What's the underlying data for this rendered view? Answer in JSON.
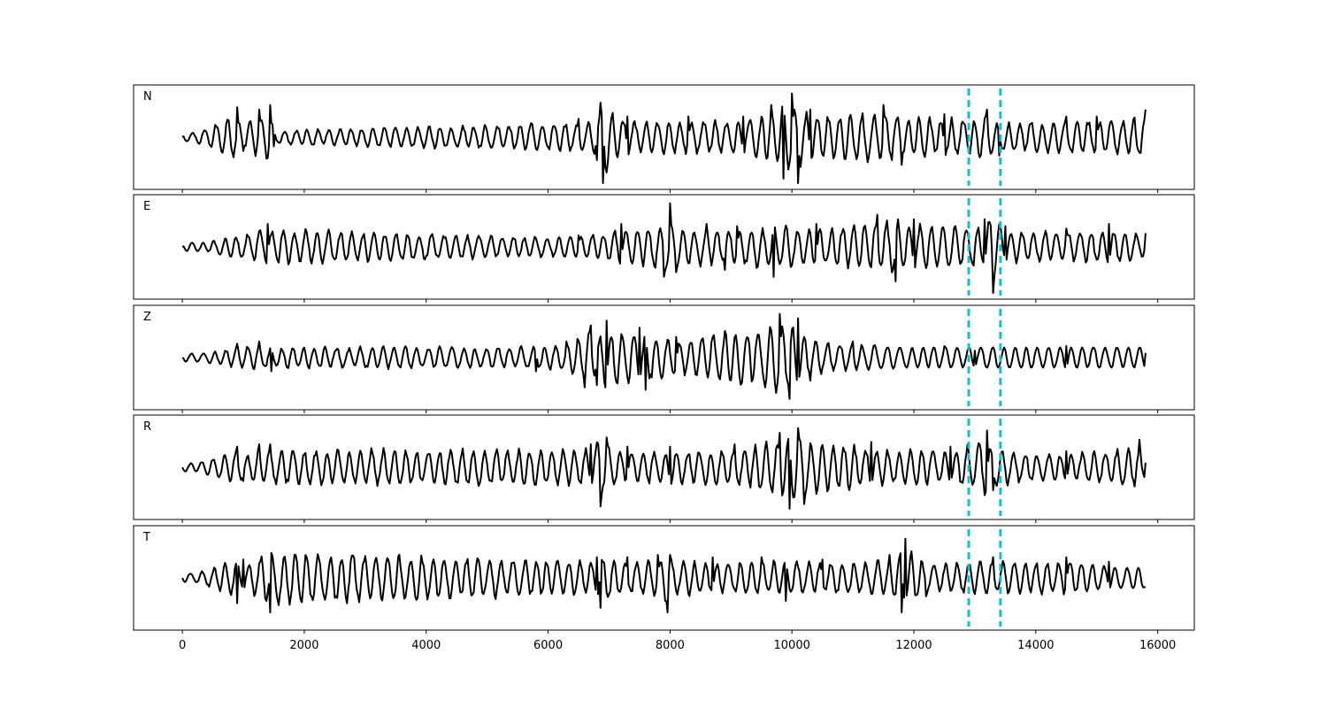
{
  "chart_data": {
    "type": "line",
    "title": "",
    "xlabel": "",
    "ylabel": "",
    "xlim": [
      -800,
      16600
    ],
    "x_ticks": [
      0,
      2000,
      4000,
      6000,
      8000,
      10000,
      12000,
      14000,
      16000
    ],
    "x_tick_labels": [
      "0",
      "2000",
      "4000",
      "6000",
      "8000",
      "10000",
      "12000",
      "14000",
      "16000"
    ],
    "grid": false,
    "legend": "none",
    "colors": {
      "trace": "#000000",
      "marker": "#17becf"
    },
    "markers": [
      {
        "x": 12900,
        "style": "dashed",
        "color": "#17becf"
      },
      {
        "x": 13420,
        "style": "dashed",
        "color": "#17becf"
      }
    ],
    "panels": [
      {
        "label": "N",
        "x_range": [
          0,
          15800
        ],
        "keypoints": [
          [
            0,
            0
          ],
          [
            900,
            0.65
          ],
          [
            1000,
            -0.3
          ],
          [
            1250,
            0.6
          ],
          [
            1440,
            0.7
          ],
          [
            1500,
            -0.2
          ],
          [
            6500,
            0.4
          ],
          [
            6800,
            -0.5
          ],
          [
            6850,
            0.75
          ],
          [
            6900,
            -1.0
          ],
          [
            7300,
            0.45
          ],
          [
            8300,
            0.45
          ],
          [
            9200,
            0.45
          ],
          [
            9650,
            0.7
          ],
          [
            9850,
            -0.9
          ],
          [
            10000,
            0.95
          ],
          [
            10100,
            -1.0
          ],
          [
            10300,
            0.6
          ],
          [
            11500,
            0.7
          ],
          [
            11800,
            -0.6
          ],
          [
            12500,
            0.5
          ],
          [
            13200,
            0.6
          ],
          [
            13400,
            -0.4
          ],
          [
            14500,
            0.45
          ],
          [
            15000,
            0.45
          ],
          [
            15800,
            0.6
          ]
        ]
      },
      {
        "label": "E",
        "x_range": [
          0,
          15800
        ],
        "keypoints": [
          [
            0,
            0
          ],
          [
            1400,
            0.5
          ],
          [
            6500,
            0.25
          ],
          [
            7200,
            0.5
          ],
          [
            7900,
            -0.65
          ],
          [
            8000,
            0.95
          ],
          [
            8100,
            -0.55
          ],
          [
            8600,
            0.5
          ],
          [
            8900,
            -0.5
          ],
          [
            9100,
            0.45
          ],
          [
            9700,
            -0.65
          ],
          [
            10400,
            0.5
          ],
          [
            11400,
            0.7
          ],
          [
            11700,
            -0.75
          ],
          [
            12000,
            0.6
          ],
          [
            13150,
            0.6
          ],
          [
            13300,
            -1.0
          ],
          [
            13500,
            0.45
          ],
          [
            14500,
            0.4
          ],
          [
            15200,
            0.5
          ],
          [
            15800,
            0.3
          ]
        ]
      },
      {
        "label": "Z",
        "x_range": [
          0,
          15800
        ],
        "keypoints": [
          [
            0,
            0
          ],
          [
            900,
            0.3
          ],
          [
            1250,
            0.35
          ],
          [
            1450,
            -0.3
          ],
          [
            5800,
            -0.3
          ],
          [
            6300,
            0.35
          ],
          [
            6600,
            -0.65
          ],
          [
            6700,
            0.7
          ],
          [
            6800,
            -0.6
          ],
          [
            6950,
            0.8
          ],
          [
            7500,
            0.65
          ],
          [
            7600,
            -0.7
          ],
          [
            8100,
            0.45
          ],
          [
            9800,
            0.95
          ],
          [
            9950,
            -0.9
          ],
          [
            10100,
            0.85
          ],
          [
            10300,
            -0.5
          ],
          [
            11000,
            0.35
          ],
          [
            12500,
            0.25
          ],
          [
            13000,
            0.15
          ],
          [
            14500,
            0.25
          ],
          [
            15800,
            0.1
          ]
        ]
      },
      {
        "label": "R",
        "x_range": [
          0,
          15800
        ],
        "keypoints": [
          [
            0,
            0
          ],
          [
            900,
            0.45
          ],
          [
            1000,
            -0.3
          ],
          [
            1250,
            0.5
          ],
          [
            1440,
            0.5
          ],
          [
            6700,
            0.5
          ],
          [
            6850,
            -0.85
          ],
          [
            6950,
            0.65
          ],
          [
            7300,
            0.45
          ],
          [
            8000,
            0.45
          ],
          [
            9050,
            0.5
          ],
          [
            9800,
            0.75
          ],
          [
            9950,
            -0.9
          ],
          [
            10100,
            0.85
          ],
          [
            10200,
            -0.8
          ],
          [
            11300,
            0.55
          ],
          [
            12600,
            0.45
          ],
          [
            13200,
            0.8
          ],
          [
            13300,
            -0.5
          ],
          [
            14500,
            0.35
          ],
          [
            15700,
            0.6
          ],
          [
            15800,
            0.1
          ]
        ]
      },
      {
        "label": "T",
        "x_range": [
          0,
          15800
        ],
        "keypoints": [
          [
            0,
            0
          ],
          [
            900,
            -0.55
          ],
          [
            1000,
            0.4
          ],
          [
            1440,
            -0.75
          ],
          [
            6800,
            0.45
          ],
          [
            6850,
            -0.65
          ],
          [
            7300,
            0.45
          ],
          [
            7800,
            0.5
          ],
          [
            7950,
            -0.75
          ],
          [
            8000,
            0.5
          ],
          [
            8700,
            0.45
          ],
          [
            9500,
            0.45
          ],
          [
            9900,
            -0.5
          ],
          [
            10500,
            0.4
          ],
          [
            11600,
            0.5
          ],
          [
            11800,
            -0.75
          ],
          [
            11850,
            0.85
          ],
          [
            12200,
            -0.4
          ],
          [
            13300,
            0.45
          ],
          [
            14500,
            0.45
          ],
          [
            15200,
            0.35
          ],
          [
            15800,
            -0.2
          ]
        ]
      }
    ]
  }
}
